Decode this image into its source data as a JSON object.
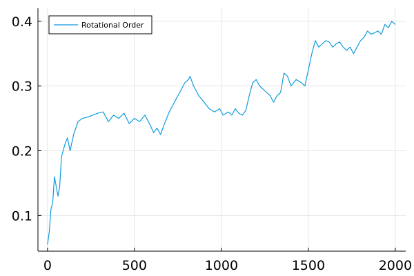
{
  "chart_data": {
    "type": "line",
    "title": "",
    "xlabel": "",
    "ylabel": "",
    "xlim": [
      -55,
      2060
    ],
    "ylim": [
      0.045,
      0.42
    ],
    "x_ticks": [
      0,
      500,
      1000,
      1500,
      2000
    ],
    "y_ticks": [
      0.1,
      0.2,
      0.3,
      0.4
    ],
    "x_tick_labels": [
      "0",
      "500",
      "1000",
      "1500",
      "2000"
    ],
    "y_tick_labels": [
      "0.1",
      "0.2",
      "0.3",
      "0.4"
    ],
    "grid": true,
    "legend": {
      "position": "top-left",
      "entries": [
        "Rotational Order"
      ]
    },
    "colors": {
      "series": "#0d9bde",
      "grid": "#e6e6e6",
      "axis": "#000000"
    },
    "series": [
      {
        "name": "Rotational Order",
        "x": [
          0,
          10,
          20,
          30,
          40,
          50,
          60,
          70,
          80,
          90,
          100,
          115,
          130,
          150,
          175,
          200,
          230,
          260,
          290,
          320,
          350,
          380,
          410,
          440,
          470,
          500,
          530,
          560,
          590,
          610,
          630,
          650,
          670,
          700,
          730,
          760,
          790,
          810,
          820,
          840,
          870,
          900,
          930,
          960,
          990,
          1010,
          1040,
          1060,
          1080,
          1100,
          1120,
          1140,
          1160,
          1180,
          1200,
          1220,
          1240,
          1260,
          1280,
          1300,
          1320,
          1340,
          1360,
          1380,
          1400,
          1430,
          1460,
          1480,
          1500,
          1520,
          1540,
          1560,
          1580,
          1600,
          1620,
          1640,
          1660,
          1680,
          1700,
          1720,
          1740,
          1760,
          1780,
          1800,
          1820,
          1840,
          1860,
          1880,
          1900,
          1920,
          1940,
          1960,
          1980,
          2000
        ],
        "values": [
          0.055,
          0.075,
          0.11,
          0.12,
          0.16,
          0.145,
          0.13,
          0.145,
          0.19,
          0.2,
          0.21,
          0.22,
          0.2,
          0.225,
          0.245,
          0.25,
          0.252,
          0.255,
          0.258,
          0.26,
          0.245,
          0.255,
          0.25,
          0.258,
          0.242,
          0.25,
          0.245,
          0.255,
          0.24,
          0.228,
          0.235,
          0.225,
          0.24,
          0.26,
          0.275,
          0.29,
          0.305,
          0.31,
          0.315,
          0.3,
          0.285,
          0.275,
          0.265,
          0.26,
          0.265,
          0.255,
          0.26,
          0.255,
          0.265,
          0.258,
          0.255,
          0.262,
          0.285,
          0.305,
          0.31,
          0.3,
          0.295,
          0.29,
          0.285,
          0.275,
          0.285,
          0.29,
          0.32,
          0.315,
          0.3,
          0.31,
          0.305,
          0.3,
          0.325,
          0.35,
          0.37,
          0.36,
          0.365,
          0.37,
          0.368,
          0.36,
          0.365,
          0.368,
          0.36,
          0.355,
          0.36,
          0.35,
          0.36,
          0.37,
          0.375,
          0.385,
          0.38,
          0.382,
          0.385,
          0.38,
          0.395,
          0.39,
          0.4,
          0.395
        ]
      }
    ]
  }
}
